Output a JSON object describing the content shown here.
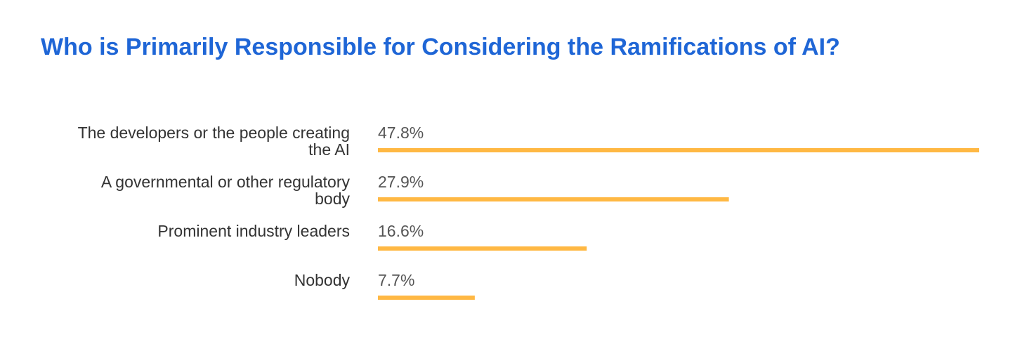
{
  "chart_data": {
    "type": "bar",
    "orientation": "horizontal",
    "title": "Who is Primarily Responsible for Considering the Ramifications of AI?",
    "categories": [
      [
        "The developers or the people creating",
        "the AI"
      ],
      [
        "A governmental or other regulatory",
        "body"
      ],
      [
        "Prominent industry leaders"
      ],
      [
        "Nobody"
      ]
    ],
    "values": [
      47.8,
      27.9,
      16.6,
      7.7
    ],
    "value_labels": [
      "47.8%",
      "27.9%",
      "16.6%",
      "7.7%"
    ],
    "unit": "%",
    "grid": false,
    "legend": "none",
    "bar_color": "#ffb843",
    "title_color": "#1f66d6"
  }
}
